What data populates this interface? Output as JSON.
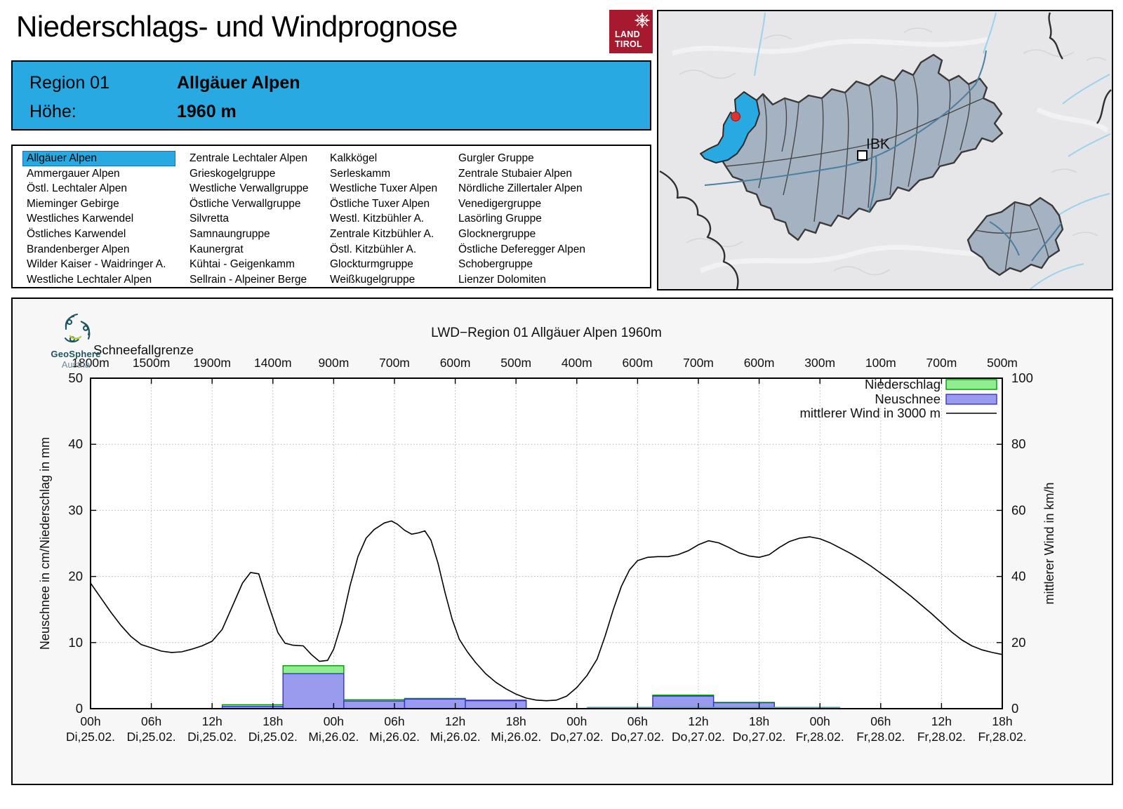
{
  "header": {
    "title": "Niederschlags- und Windprognose"
  },
  "land_tirol_logo": {
    "line1": "LAND",
    "line2": "TIROL",
    "bg_color": "#a6192e"
  },
  "region_box": {
    "region_label": "Region 01",
    "region_name": "Allgäuer Alpen",
    "altitude_label": "Höhe:",
    "altitude_value": "1960 m",
    "bg_color": "#29a9e1"
  },
  "region_list": {
    "selected": "Allgäuer Alpen",
    "highlight_color": "#29a9e1",
    "columns": [
      [
        "Allgäuer Alpen",
        "Ammergauer Alpen",
        "Östl. Lechtaler Alpen",
        "Mieminger Gebirge",
        "Westliches Karwendel",
        "Östliches Karwendel",
        "Brandenberger Alpen",
        "Wilder Kaiser - Waidringer A.",
        "Westliche Lechtaler Alpen"
      ],
      [
        "Zentrale Lechtaler Alpen",
        "Grieskogelgruppe",
        "Westliche Verwallgruppe",
        "Östliche Verwallgruppe",
        "Silvretta",
        "Samnaungruppe",
        "Kaunergrat",
        "Kühtai - Geigenkamm",
        "Sellrain - Alpeiner Berge"
      ],
      [
        "Kalkkögel",
        "Serleskamm",
        "Westliche Tuxer Alpen",
        "Östliche Tuxer Alpen",
        "Westl. Kitzbühler A.",
        "Zentrale Kitzbühler A.",
        "Östl. Kitzbühler A.",
        "Glockturmgruppe",
        "Weißkugelgruppe"
      ],
      [
        "Gurgler Gruppe",
        "Zentrale Stubaier Alpen",
        "Nördliche Zillertaler Alpen",
        "Venedigergruppe",
        "Lasörling Gruppe",
        "Glocknergruppe",
        "Östliche Deferegger Alpen",
        "Schobergruppe",
        "Lienzer Dolomiten"
      ]
    ]
  },
  "map": {
    "city_label": "IBK",
    "highlight_color": "#29a9e1",
    "marker_color": "#e03131"
  },
  "geosphere_logo": {
    "name": "GeoSphere",
    "country": "Austria"
  },
  "chart_data": {
    "type": "bar+line",
    "title": "LWD−Region 01 Allgäuer Alpen 1960m",
    "snowline": {
      "label": "Schneefallgrenze",
      "values": [
        "1800m",
        "1500m",
        "1900m",
        "1400m",
        "900m",
        "700m",
        "600m",
        "500m",
        "400m",
        "600m",
        "700m",
        "600m",
        "300m",
        "100m",
        "700m",
        "500m"
      ]
    },
    "axes": {
      "ylabel_left": "Neuschnee in cm/Niederschlag in mm",
      "ylabel_right": "mittlerer Wind in km/h",
      "ylim_left": [
        0,
        50
      ],
      "ylim_right": [
        0,
        100
      ],
      "yticks_left": [
        0,
        10,
        20,
        30,
        40,
        50
      ],
      "yticks_right": [
        0,
        20,
        40,
        60,
        80,
        100
      ],
      "x_hours_span": 90,
      "grid": true,
      "x_ticks": [
        {
          "hour_offset": 0,
          "time": "00h",
          "date": "Di,25.02."
        },
        {
          "hour_offset": 6,
          "time": "06h",
          "date": "Di,25.02."
        },
        {
          "hour_offset": 12,
          "time": "12h",
          "date": "Di,25.02."
        },
        {
          "hour_offset": 18,
          "time": "18h",
          "date": "Di,25.02."
        },
        {
          "hour_offset": 24,
          "time": "00h",
          "date": "Mi,26.02."
        },
        {
          "hour_offset": 30,
          "time": "06h",
          "date": "Mi,26.02."
        },
        {
          "hour_offset": 36,
          "time": "12h",
          "date": "Mi,26.02."
        },
        {
          "hour_offset": 42,
          "time": "18h",
          "date": "Mi,26.02."
        },
        {
          "hour_offset": 48,
          "time": "00h",
          "date": "Do,27.02."
        },
        {
          "hour_offset": 54,
          "time": "06h",
          "date": "Do,27.02."
        },
        {
          "hour_offset": 60,
          "time": "12h",
          "date": "Do,27.02."
        },
        {
          "hour_offset": 66,
          "time": "18h",
          "date": "Do,27.02."
        },
        {
          "hour_offset": 72,
          "time": "00h",
          "date": "Fr,28.02."
        },
        {
          "hour_offset": 78,
          "time": "06h",
          "date": "Fr,28.02."
        },
        {
          "hour_offset": 84,
          "time": "12h",
          "date": "Fr,28.02."
        },
        {
          "hour_offset": 90,
          "time": "18h",
          "date": "Fr,28.02."
        }
      ]
    },
    "legend": [
      {
        "label": "Niederschlag",
        "kind": "box",
        "fill": "#90ee90",
        "stroke": "#009900"
      },
      {
        "label": "Neuschnee",
        "kind": "box",
        "fill": "#9a9aee",
        "stroke": "#3535cf"
      },
      {
        "label": "mittlerer Wind in 3000 m",
        "kind": "line",
        "stroke": "#000000"
      }
    ],
    "bars_6h": [
      {
        "start_h": 13,
        "end_h": 19,
        "niederschlag_mm": 0.6,
        "neuschnee_cm": 0.35
      },
      {
        "start_h": 19,
        "end_h": 25,
        "niederschlag_mm": 6.5,
        "neuschnee_cm": 5.3
      },
      {
        "start_h": 25,
        "end_h": 31,
        "niederschlag_mm": 1.35,
        "neuschnee_cm": 1.15
      },
      {
        "start_h": 31,
        "end_h": 37,
        "niederschlag_mm": 1.55,
        "neuschnee_cm": 1.45
      },
      {
        "start_h": 37,
        "end_h": 43,
        "niederschlag_mm": 1.3,
        "neuschnee_cm": 1.2
      },
      {
        "start_h": 55.5,
        "end_h": 61.5,
        "niederschlag_mm": 2.05,
        "neuschnee_cm": 1.9
      },
      {
        "start_h": 61.5,
        "end_h": 67.5,
        "niederschlag_mm": 0.95,
        "neuschnee_cm": 0.9
      }
    ],
    "zero_marker_line": {
      "start_h": 49,
      "end_h": 74,
      "value_mm": 0.15,
      "color": "#5ba3b0"
    },
    "wind_kmh": [
      [
        0,
        38
      ],
      [
        1,
        33.6
      ],
      [
        2,
        29.2
      ],
      [
        3,
        25.2
      ],
      [
        4,
        21.8
      ],
      [
        5,
        19.4
      ],
      [
        6,
        18.4
      ],
      [
        7,
        17.4
      ],
      [
        8,
        17
      ],
      [
        9,
        17.2
      ],
      [
        10,
        18
      ],
      [
        11,
        19
      ],
      [
        12,
        20.4
      ],
      [
        13,
        24
      ],
      [
        14,
        31
      ],
      [
        15,
        38
      ],
      [
        15.8,
        41.2
      ],
      [
        16.6,
        40.8
      ],
      [
        17.5,
        32
      ],
      [
        18.5,
        23
      ],
      [
        19.2,
        19.8
      ],
      [
        20,
        19.2
      ],
      [
        21,
        19
      ],
      [
        21.8,
        16.4
      ],
      [
        22.6,
        14.3
      ],
      [
        23.4,
        14.6
      ],
      [
        24,
        18
      ],
      [
        24.8,
        26
      ],
      [
        25.6,
        37
      ],
      [
        26.4,
        46
      ],
      [
        27.2,
        51.6
      ],
      [
        28,
        54.2
      ],
      [
        29,
        56.2
      ],
      [
        29.7,
        56.8
      ],
      [
        30.3,
        55.8
      ],
      [
        31,
        54
      ],
      [
        31.7,
        52.8
      ],
      [
        32.4,
        53.2
      ],
      [
        33,
        53.8
      ],
      [
        33.6,
        51
      ],
      [
        34.3,
        44
      ],
      [
        35,
        35
      ],
      [
        35.7,
        27
      ],
      [
        36.4,
        21
      ],
      [
        37.2,
        17.2
      ],
      [
        38,
        14
      ],
      [
        39,
        10.6
      ],
      [
        40,
        8
      ],
      [
        41,
        6
      ],
      [
        42,
        4.4
      ],
      [
        43,
        3.2
      ],
      [
        44,
        2.6
      ],
      [
        45,
        2.4
      ],
      [
        46,
        2.6
      ],
      [
        47,
        3.8
      ],
      [
        48,
        6.4
      ],
      [
        49,
        10
      ],
      [
        50,
        15
      ],
      [
        50.8,
        22
      ],
      [
        51.6,
        30
      ],
      [
        52.4,
        37
      ],
      [
        53.2,
        42
      ],
      [
        54,
        44.8
      ],
      [
        55,
        45.8
      ],
      [
        56,
        46
      ],
      [
        57,
        46
      ],
      [
        58,
        46.6
      ],
      [
        59,
        47.8
      ],
      [
        60,
        49.6
      ],
      [
        61,
        50.8
      ],
      [
        62,
        50.2
      ],
      [
        63,
        48.8
      ],
      [
        64,
        47.2
      ],
      [
        65,
        46.2
      ],
      [
        66,
        45.8
      ],
      [
        67,
        46.6
      ],
      [
        68,
        48.8
      ],
      [
        69,
        50.6
      ],
      [
        70,
        51.6
      ],
      [
        71,
        52
      ],
      [
        72,
        51.4
      ],
      [
        73,
        50.2
      ],
      [
        74,
        48.6
      ],
      [
        75,
        47
      ],
      [
        76,
        45.2
      ],
      [
        77,
        43.2
      ],
      [
        78,
        41
      ],
      [
        79,
        38.8
      ],
      [
        80,
        36.4
      ],
      [
        81,
        34
      ],
      [
        82,
        31.4
      ],
      [
        83,
        28.8
      ],
      [
        84,
        26
      ],
      [
        85,
        23.2
      ],
      [
        86,
        20.8
      ],
      [
        87,
        19
      ],
      [
        88,
        17.8
      ],
      [
        89,
        17
      ],
      [
        90,
        16.4
      ]
    ]
  }
}
